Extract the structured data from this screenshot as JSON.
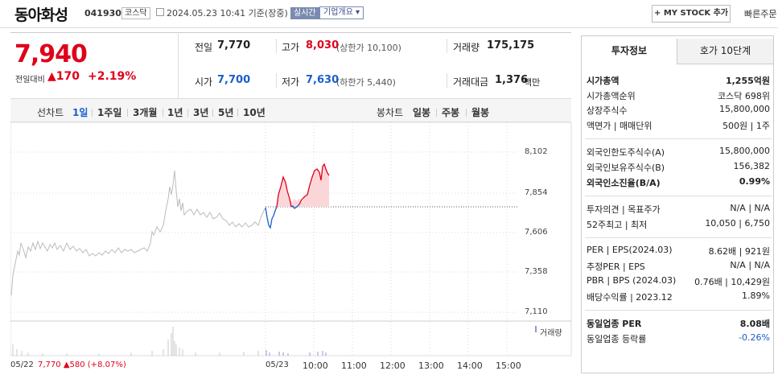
{
  "header": {
    "company": "동아화성",
    "code": "041930",
    "market_tag": "코스닥",
    "datetime": "2024.05.23 10:41 기준(장중)",
    "live_label": "실시간",
    "corp_label": "기업개요 ▾",
    "mystock_label": "+ MY STOCK 추가",
    "quick_label": "빠른주문"
  },
  "price": {
    "current": "7,940",
    "change_label": "전일대비",
    "change_value": "▲170",
    "change_pct": "+2.19%"
  },
  "stats": {
    "prev_label": "전일",
    "prev": "7,770",
    "high_label": "고가",
    "high": "8,030",
    "upper_limit": "(상한가 10,100)",
    "volume_label": "거래량",
    "volume": "175,175",
    "open_label": "시가",
    "open": "7,700",
    "low_label": "저가",
    "low": "7,630",
    "lower_limit": "(하한가 5,440)",
    "amount_label": "거래대금",
    "amount": "1,376",
    "amount_unit": "백만"
  },
  "toolbar": {
    "line_label": "선차트",
    "line_opts": [
      "1일",
      "1주일",
      "3개월",
      "1년",
      "3년",
      "5년",
      "10년"
    ],
    "candle_label": "봉차트",
    "candle_opts": [
      "일봉",
      "주봉",
      "월봉"
    ]
  },
  "chart": {
    "y_ticks": [
      "8,102",
      "7,854",
      "7,606",
      "7,358",
      "7,110"
    ],
    "volume_label": "거래량",
    "x_labels": [
      "05/22",
      "05/23",
      "10:00",
      "11:00",
      "12:00",
      "13:00",
      "14:00",
      "15:00"
    ],
    "footer_date": "05/22",
    "footer_price": "7,770",
    "footer_change": "▲580 (+8.07%)",
    "colors": {
      "up": "#e0001b",
      "down": "#1a5fc8",
      "prev": "#bbbbbb",
      "fill_up": "#fbd6d9"
    }
  },
  "right": {
    "tab_active": "투자정보",
    "tab_other": "호가 10단계",
    "market_cap_label": "시가총액",
    "market_cap": "1,255억원",
    "market_rank_label": "시가총액순위",
    "market_rank": "코스닥 698위",
    "shares_label": "상장주식수",
    "shares": "15,800,000",
    "face_label": "액면가 | 매매단위",
    "face": "500원 | 1주",
    "foreign_limit_label": "외국인한도주식수(A)",
    "foreign_limit": "15,800,000",
    "foreign_hold_label": "외국인보유주식수(B)",
    "foreign_hold": "156,382",
    "foreign_ratio_label": "외국인소진율(B/A)",
    "foreign_ratio": "0.99%",
    "opinion_label": "투자의견 | 목표주가",
    "opinion": "N/A | N/A",
    "range_label": "52주최고 | 최저",
    "range": "10,050 | 6,750",
    "per_label": "PER | EPS(2024.03)",
    "per": "8.62배 | 921원",
    "est_per_label": "추정PER | EPS",
    "est_per": "N/A | N/A",
    "pbr_label": "PBR | BPS (2024.03)",
    "pbr": "0.76배 | 10,429원",
    "div_label": "배당수익률 | 2023.12",
    "div": "1.89%",
    "ind_per_label": "동일업종 PER",
    "ind_per": "8.08배",
    "ind_rate_label": "동일업종 등락률",
    "ind_rate": "-0.26%"
  }
}
